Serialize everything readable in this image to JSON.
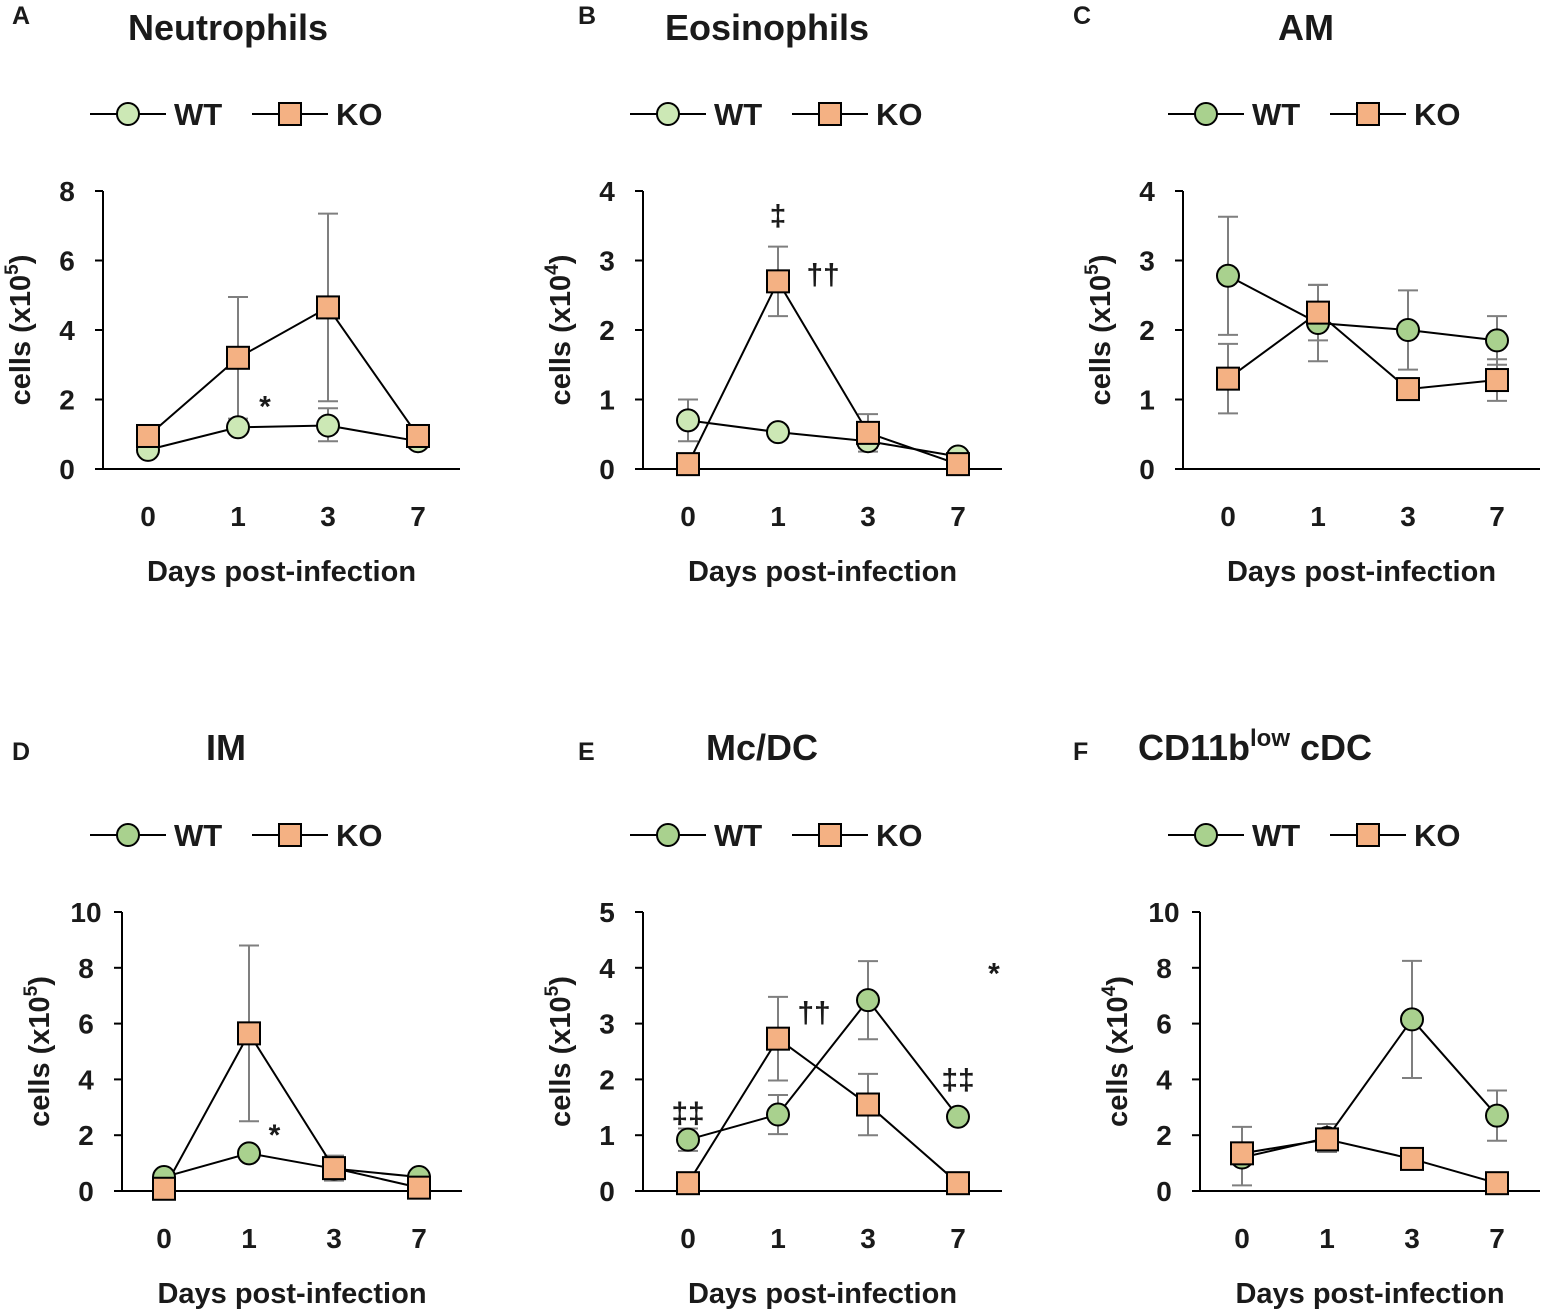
{
  "chart_data": [
    {
      "panel": "A",
      "type": "line",
      "title": "Neutrophils",
      "title_sup": "",
      "xlabel": "Days post-infection",
      "ylabel_prefix": "cells (x10",
      "ylabel_exp": "5",
      "ylabel_suffix": ")",
      "categories": [
        "0",
        "1",
        "3",
        "7"
      ],
      "ylim": [
        0,
        8
      ],
      "yticks": [
        0,
        2,
        4,
        6,
        8
      ],
      "series": [
        {
          "name": "WT",
          "values": [
            0.55,
            1.2,
            1.25,
            0.8
          ],
          "err_up": [
            0.1,
            0.15,
            0.5,
            0.08
          ],
          "err_down": [
            0.1,
            0.15,
            0.45,
            0.08
          ]
        },
        {
          "name": "KO",
          "values": [
            0.95,
            3.2,
            4.65,
            0.95
          ],
          "err_up": [
            0.1,
            1.75,
            2.7,
            0.1
          ],
          "err_down": [
            0.1,
            1.75,
            2.7,
            0.1
          ]
        }
      ],
      "annotations": [
        {
          "text": "*",
          "x": 1.3,
          "y": 1.8
        }
      ]
    },
    {
      "panel": "B",
      "type": "line",
      "title": "Eosinophils",
      "title_sup": "",
      "xlabel": "Days post-infection",
      "ylabel_prefix": "cells (x10",
      "ylabel_exp": "4",
      "ylabel_suffix": ")",
      "categories": [
        "0",
        "1",
        "3",
        "7"
      ],
      "ylim": [
        0,
        4
      ],
      "yticks": [
        0,
        1,
        2,
        3,
        4
      ],
      "series": [
        {
          "name": "WT",
          "values": [
            0.7,
            0.53,
            0.4,
            0.18
          ],
          "err_up": [
            0.3,
            0.05,
            0.1,
            0.05
          ],
          "err_down": [
            0.3,
            0.05,
            0.1,
            0.05
          ]
        },
        {
          "name": "KO",
          "values": [
            0.07,
            2.7,
            0.52,
            0.07
          ],
          "err_up": [
            0.05,
            0.5,
            0.27,
            0.05
          ],
          "err_down": [
            0.05,
            0.5,
            0.27,
            0.05
          ]
        }
      ],
      "annotations": [
        {
          "text": "‡",
          "x": 1.0,
          "y": 3.65
        },
        {
          "text": "††",
          "x": 1.5,
          "y": 2.8
        }
      ]
    },
    {
      "panel": "C",
      "type": "line",
      "title": "AM",
      "title_sup": "",
      "xlabel": "Days post-infection",
      "ylabel_prefix": "cells (x10",
      "ylabel_exp": "5",
      "ylabel_suffix": ")",
      "categories": [
        "0",
        "1",
        "3",
        "7"
      ],
      "ylim": [
        0,
        4
      ],
      "yticks": [
        0,
        1,
        2,
        3,
        4
      ],
      "series": [
        {
          "name": "WT",
          "values": [
            2.78,
            2.1,
            2.0,
            1.85
          ],
          "err_up": [
            0.85,
            0.55,
            0.57,
            0.35
          ],
          "err_down": [
            0.85,
            0.55,
            0.57,
            0.35
          ]
        },
        {
          "name": "KO",
          "values": [
            1.3,
            2.25,
            1.15,
            1.28
          ],
          "err_up": [
            0.5,
            0.4,
            0.12,
            0.3
          ],
          "err_down": [
            0.5,
            0.4,
            0.12,
            0.3
          ]
        }
      ],
      "annotations": []
    },
    {
      "panel": "D",
      "type": "line",
      "title": "IM",
      "title_sup": "",
      "xlabel": "Days post-infection",
      "ylabel_prefix": "cells (x10",
      "ylabel_exp": "5",
      "ylabel_suffix": ")",
      "categories": [
        "0",
        "1",
        "3",
        "7"
      ],
      "ylim": [
        0,
        10
      ],
      "yticks": [
        0,
        2,
        4,
        6,
        8,
        10
      ],
      "series": [
        {
          "name": "WT",
          "values": [
            0.5,
            1.35,
            0.8,
            0.5
          ],
          "err_up": [
            0.1,
            0.15,
            0.4,
            0.1
          ],
          "err_down": [
            0.1,
            0.15,
            0.4,
            0.1
          ]
        },
        {
          "name": "KO",
          "values": [
            0.08,
            5.65,
            0.82,
            0.12
          ],
          "err_up": [
            0.05,
            3.15,
            0.45,
            0.05
          ],
          "err_down": [
            0.05,
            3.15,
            0.45,
            0.05
          ]
        }
      ],
      "annotations": [
        {
          "text": "*",
          "x": 1.3,
          "y": 2.0
        }
      ]
    },
    {
      "panel": "E",
      "type": "line",
      "title": "Mc/DC",
      "title_sup": "",
      "xlabel": "Days post-infection",
      "ylabel_prefix": "cells (x10",
      "ylabel_exp": "5",
      "ylabel_suffix": ")",
      "categories": [
        "0",
        "1",
        "3",
        "7"
      ],
      "ylim": [
        0,
        5
      ],
      "yticks": [
        0,
        1,
        2,
        3,
        4,
        5
      ],
      "series": [
        {
          "name": "WT",
          "values": [
            0.92,
            1.37,
            3.42,
            1.33
          ],
          "err_up": [
            0.2,
            0.35,
            0.7,
            0.05
          ],
          "err_down": [
            0.2,
            0.35,
            0.7,
            0.05
          ]
        },
        {
          "name": "KO",
          "values": [
            0.14,
            2.73,
            1.55,
            0.14
          ],
          "err_up": [
            0.05,
            0.75,
            0.55,
            0.05
          ],
          "err_down": [
            0.05,
            0.75,
            0.55,
            0.05
          ]
        }
      ],
      "annotations": [
        {
          "text": "‡‡",
          "x": 0.0,
          "y": 1.4
        },
        {
          "text": "††",
          "x": 1.4,
          "y": 3.2
        },
        {
          "text": "*",
          "x": 3.4,
          "y": 3.9
        },
        {
          "text": "‡‡",
          "x": 3.0,
          "y": 2.0
        }
      ]
    },
    {
      "panel": "F",
      "type": "line",
      "title": "CD11b",
      "title_sup": "low",
      "title_after": " cDC",
      "xlabel": "Days post-infection",
      "ylabel_prefix": "cells (x10",
      "ylabel_exp": "4",
      "ylabel_suffix": ")",
      "categories": [
        "0",
        "1",
        "3",
        "7"
      ],
      "ylim": [
        0,
        10
      ],
      "yticks": [
        0,
        2,
        4,
        6,
        8,
        10
      ],
      "series": [
        {
          "name": "WT",
          "values": [
            1.2,
            1.9,
            6.15,
            2.7
          ],
          "err_up": [
            1.1,
            0.5,
            2.1,
            0.9
          ],
          "err_down": [
            1.0,
            0.5,
            2.1,
            0.9
          ]
        },
        {
          "name": "KO",
          "values": [
            1.35,
            1.85,
            1.15,
            0.28
          ],
          "err_up": [
            0.3,
            0.2,
            0.15,
            0.1
          ],
          "err_down": [
            0.3,
            0.2,
            0.15,
            0.1
          ]
        }
      ],
      "annotations": []
    }
  ],
  "colors": {
    "wt_light": "#cce8b5",
    "wt_dark": "#a9d18e",
    "ko": "#f4b183",
    "line": "#000000",
    "error": "#7f7f7f"
  },
  "legend": {
    "wt": "WT",
    "ko": "KO"
  }
}
